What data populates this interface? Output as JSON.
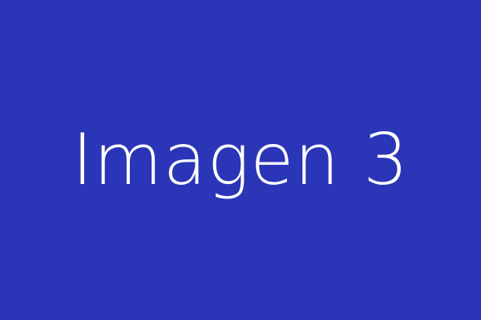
{
  "placeholder": {
    "text": "Imagen 3",
    "background_color": "#2a35b8",
    "text_color": "#ffffff"
  }
}
